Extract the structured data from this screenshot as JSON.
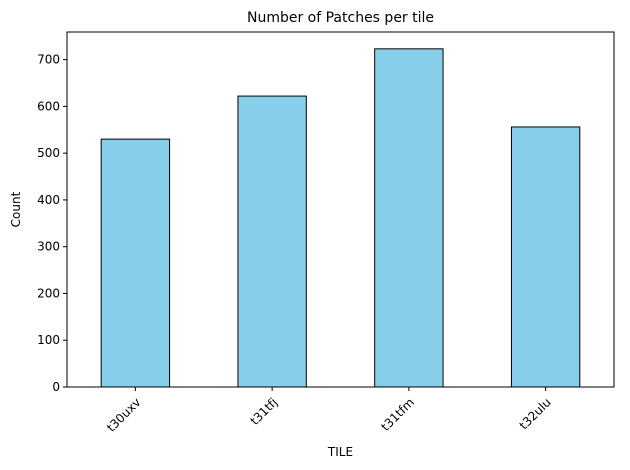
{
  "chart_data": {
    "type": "bar",
    "title": "Number of Patches per tile",
    "xlabel": "TILE",
    "ylabel": "Count",
    "categories": [
      "t30uxv",
      "t31tfj",
      "t31tfm",
      "t32ulu"
    ],
    "values": [
      530,
      622,
      723,
      556
    ],
    "ylim": [
      0,
      759
    ],
    "yticks": [
      0,
      100,
      200,
      300,
      400,
      500,
      600,
      700
    ],
    "grid": false,
    "bar_color": "#87ceeb",
    "edge_color": "#000000",
    "x_tick_rotation_deg": 45
  }
}
